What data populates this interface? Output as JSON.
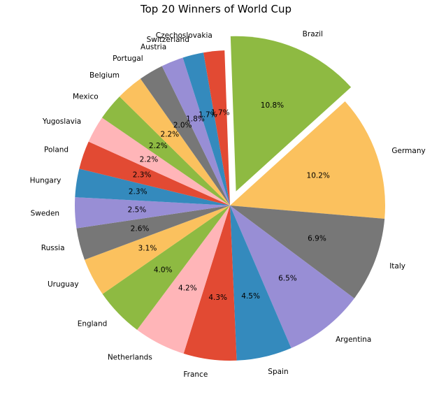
{
  "chart_data": {
    "type": "pie",
    "title": "Top 20 Winners of World Cup",
    "start_angle_deg": 92,
    "direction": "clockwise",
    "exploded": "Brazil",
    "slices": [
      {
        "label": "Brazil",
        "value": 10.8,
        "pct_label": "10.8%",
        "color": "#8EBA42"
      },
      {
        "label": "Germany",
        "value": 10.2,
        "pct_label": "10.2%",
        "color": "#FBC15E"
      },
      {
        "label": "Italy",
        "value": 6.9,
        "pct_label": "6.9%",
        "color": "#777777"
      },
      {
        "label": "Argentina",
        "value": 6.5,
        "pct_label": "6.5%",
        "color": "#988ED5"
      },
      {
        "label": "Spain",
        "value": 4.5,
        "pct_label": "4.5%",
        "color": "#348ABD"
      },
      {
        "label": "France",
        "value": 4.3,
        "pct_label": "4.3%",
        "color": "#E24A33"
      },
      {
        "label": "Netherlands",
        "value": 4.2,
        "pct_label": "4.2%",
        "color": "#FFB5B8"
      },
      {
        "label": "England",
        "value": 4.0,
        "pct_label": "4.0%",
        "color": "#8EBA42"
      },
      {
        "label": "Uruguay",
        "value": 3.1,
        "pct_label": "3.1%",
        "color": "#FBC15E"
      },
      {
        "label": "Russia",
        "value": 2.6,
        "pct_label": "2.6%",
        "color": "#777777"
      },
      {
        "label": "Sweden",
        "value": 2.5,
        "pct_label": "2.5%",
        "color": "#988ED5"
      },
      {
        "label": "Hungary",
        "value": 2.3,
        "pct_label": "2.3%",
        "color": "#348ABD"
      },
      {
        "label": "Poland",
        "value": 2.3,
        "pct_label": "2.3%",
        "color": "#E24A33"
      },
      {
        "label": "Yugoslavia",
        "value": 2.2,
        "pct_label": "2.2%",
        "color": "#FFB5B8"
      },
      {
        "label": "Mexico",
        "value": 2.2,
        "pct_label": "2.2%",
        "color": "#8EBA42"
      },
      {
        "label": "Belgium",
        "value": 2.2,
        "pct_label": "2.2%",
        "color": "#FBC15E"
      },
      {
        "label": "Portugal",
        "value": 2.0,
        "pct_label": "2.0%",
        "color": "#777777"
      },
      {
        "label": "Austria",
        "value": 1.8,
        "pct_label": "1.8%",
        "color": "#988ED5"
      },
      {
        "label": "Switzerland",
        "value": 1.7,
        "pct_label": "1.7%",
        "color": "#348ABD"
      },
      {
        "label": "Czechoslovakia",
        "value": 1.7,
        "pct_label": "1.7%",
        "color": "#E24A33"
      }
    ]
  }
}
